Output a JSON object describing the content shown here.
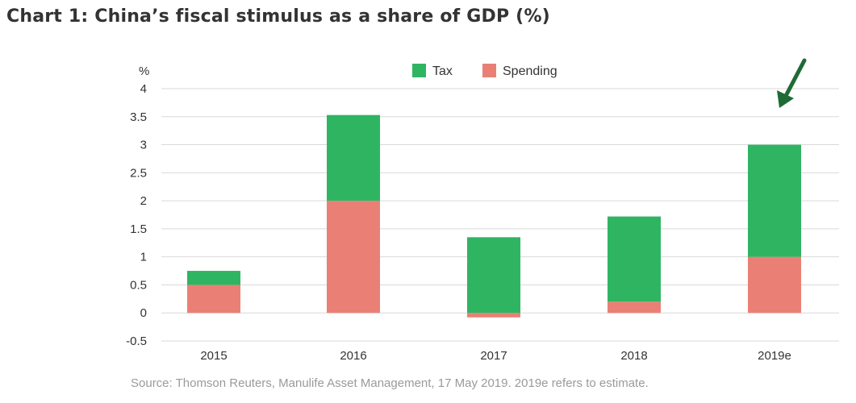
{
  "title": "Chart 1: China’s fiscal stimulus as a share of GDP (%)",
  "source": "Source: Thomson Reuters, Manulife Asset Management, 17 May 2019. 2019e refers to estimate.",
  "colors": {
    "tax": "#2fb562",
    "spending": "#ea8075",
    "grid": "#d9d9d9",
    "arrow": "#1e6b35"
  },
  "chart_data": {
    "type": "bar",
    "stacked": true,
    "categories": [
      "2015",
      "2016",
      "2017",
      "2018",
      "2019e"
    ],
    "series": [
      {
        "name": "Tax",
        "values": [
          0.25,
          1.53,
          1.35,
          1.52,
          2.0
        ]
      },
      {
        "name": "Spending",
        "values": [
          0.5,
          2.0,
          -0.08,
          0.2,
          1.0
        ]
      }
    ],
    "ylabel": "%",
    "ylim": [
      -0.5,
      4
    ],
    "yticks": [
      "4",
      "3.5",
      "3",
      "2.5",
      "2",
      "1.5",
      "1",
      "0.5",
      "0",
      "-0.5"
    ],
    "ytick_values": [
      4,
      3.5,
      3,
      2.5,
      2,
      1.5,
      1,
      0.5,
      0,
      -0.5
    ],
    "grid": true,
    "legend": "top-center",
    "annotation": "arrow pointing to 2019e bar"
  }
}
